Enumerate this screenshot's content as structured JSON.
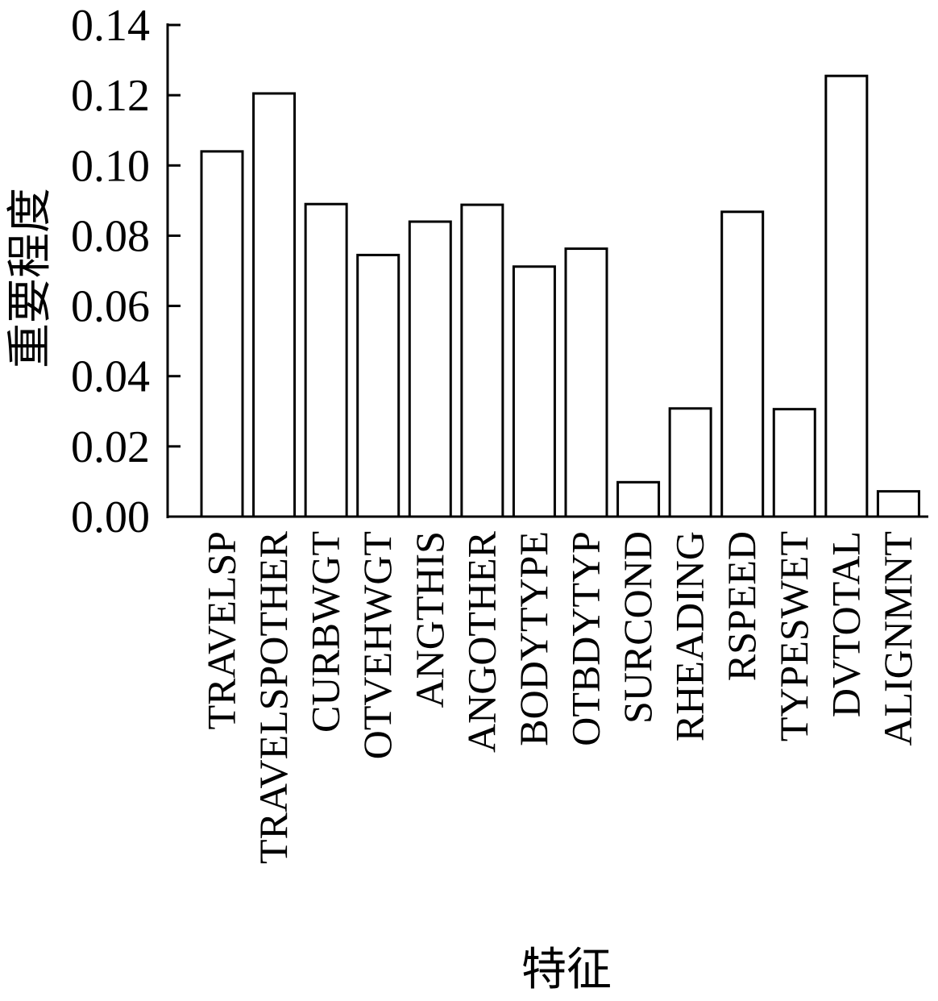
{
  "chart_data": {
    "type": "bar",
    "xlabel": "特征",
    "ylabel": "重要程度",
    "ylim": [
      0,
      0.14
    ],
    "yticks": [
      "0.00",
      "0.02",
      "0.04",
      "0.06",
      "0.08",
      "0.10",
      "0.12",
      "0.14"
    ],
    "categories": [
      "TRAVELSP",
      "TRAVELSPOTHER",
      "CURBWGT",
      "OTVEHWGT",
      "ANGTHIS",
      "ANGOTHER",
      "BODYTYPE",
      "OTBDYTYP",
      "SURCOND",
      "RHEADING",
      "RSPEED",
      "TYPESWET",
      "DVTOTAL",
      "ALIGNMNT"
    ],
    "values": [
      0.104,
      0.1205,
      0.089,
      0.0745,
      0.084,
      0.0888,
      0.0712,
      0.0763,
      0.0098,
      0.0308,
      0.0868,
      0.0306,
      0.1255,
      0.0072
    ],
    "grid": false,
    "bar_fill": "#ffffff",
    "bar_stroke": "#000000"
  }
}
